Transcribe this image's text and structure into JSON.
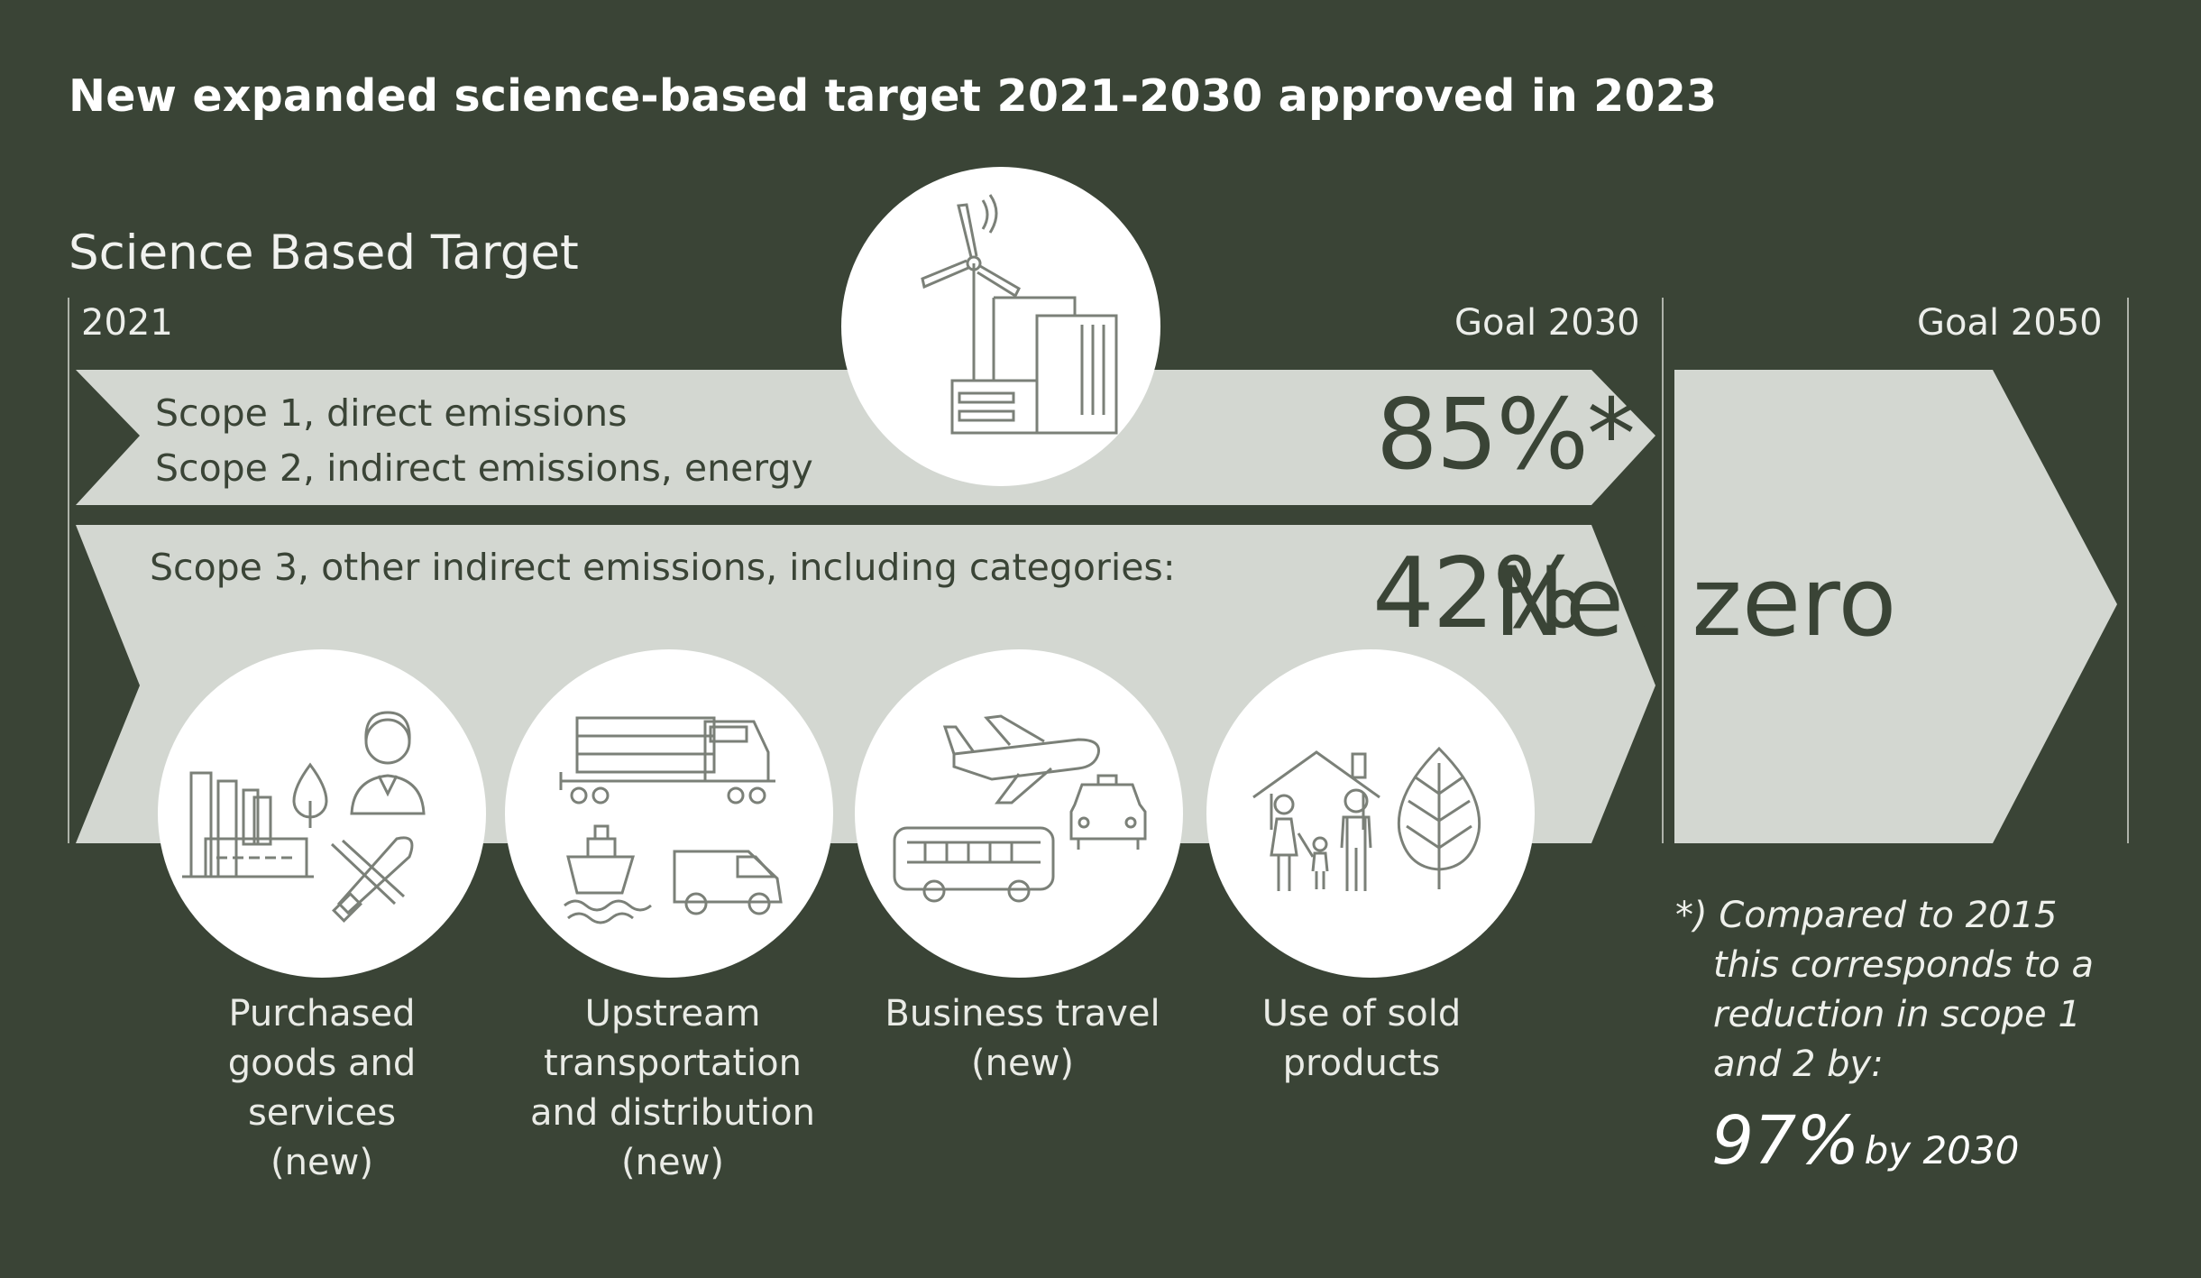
{
  "title": "New expanded science-based target 2021-2030 approved in 2023",
  "subtitle": "Science Based Target",
  "timeline": {
    "start": "2021",
    "goal_2030": "Goal 2030",
    "goal_2050": "Goal 2050"
  },
  "scope12": {
    "line1": "Scope 1, direct emissions",
    "line2": "Scope 2, indirect emissions, energy",
    "target": "85%*",
    "icon": "wind-turbine-factory-icon"
  },
  "scope3": {
    "text": "Scope 3, other indirect emissions, including categories:",
    "target": "42%"
  },
  "goal2050": {
    "target": "Net zero"
  },
  "categories": [
    {
      "icon": "purchased-goods-icon",
      "lines": [
        "Purchased",
        "goods and",
        "services",
        "(new)"
      ]
    },
    {
      "icon": "transportation-icon",
      "lines": [
        "Upstream",
        "transportation",
        "and distribution",
        "(new)"
      ]
    },
    {
      "icon": "business-travel-icon",
      "lines": [
        "Business travel",
        "(new)"
      ]
    },
    {
      "icon": "sold-products-icon",
      "lines": [
        "Use of sold",
        "products"
      ]
    }
  ],
  "footnote": {
    "marker": "*)",
    "line1": "Compared to 2015",
    "line2": "this corresponds to a",
    "line3": "reduction in scope 1",
    "line4": "and 2 by:",
    "value": "97%",
    "suffix": "by 2030"
  },
  "colors": {
    "background": "#3a4436",
    "arrow": "#d3d7d1",
    "circle": "#ffffff",
    "icon_stroke": "#7b8078"
  }
}
